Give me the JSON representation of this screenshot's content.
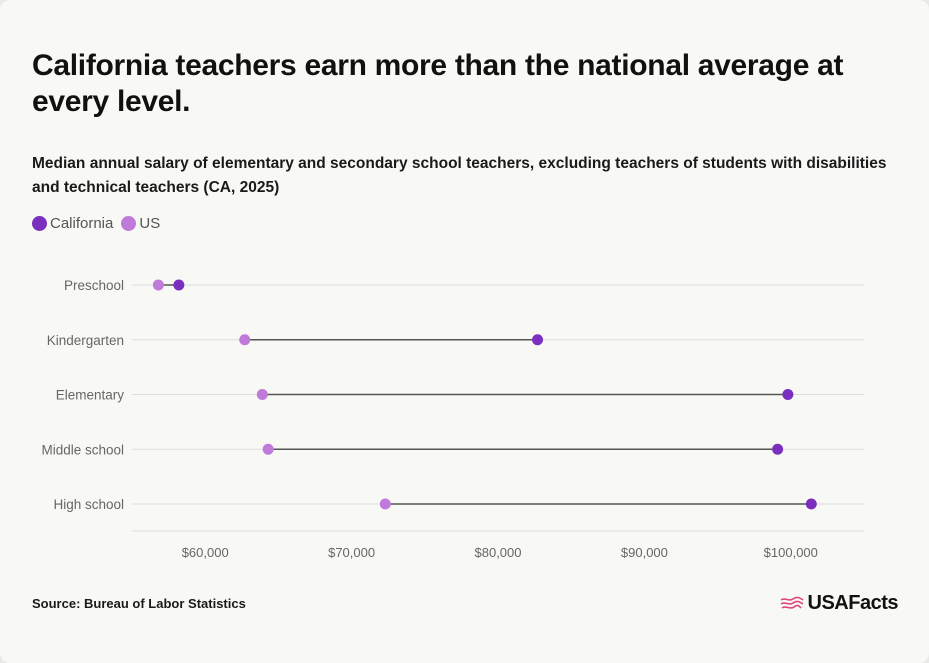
{
  "title": "California teachers earn more than the national average at every level.",
  "subtitle": "Median annual salary of elementary and secondary school teachers, excluding teachers of students with disabilities and technical teachers (CA, 2025)",
  "source": "Source: Bureau of Labor Statistics",
  "logo": {
    "text": "USAFacts",
    "icon": "usa-flag-map-icon"
  },
  "colors": {
    "california": "#7b2fbe",
    "us": "#c07ad9",
    "connector": "#555555",
    "grid": "#dcdcd8",
    "tick_text": "#666666"
  },
  "chart_data": {
    "type": "dumbbell",
    "title": "California teachers earn more than the national average at every level.",
    "subtitle": "Median annual salary of elementary and secondary school teachers, excluding teachers of students with disabilities and technical teachers (CA, 2025)",
    "xlabel": "",
    "ylabel": "",
    "legend_position": "top-left",
    "grid": "horizontal",
    "xlim": [
      55000,
      105000
    ],
    "x_ticks": [
      60000,
      70000,
      80000,
      90000,
      100000
    ],
    "x_tick_labels": [
      "$60,000",
      "$70,000",
      "$80,000",
      "$90,000",
      "$100,000"
    ],
    "categories": [
      "Preschool",
      "Kindergarten",
      "Elementary",
      "Middle school",
      "High school"
    ],
    "series": [
      {
        "name": "California",
        "values": [
          58200,
          82700,
          99800,
          99100,
          101400
        ]
      },
      {
        "name": "US",
        "values": [
          56800,
          62700,
          63900,
          64300,
          72300
        ]
      }
    ]
  }
}
